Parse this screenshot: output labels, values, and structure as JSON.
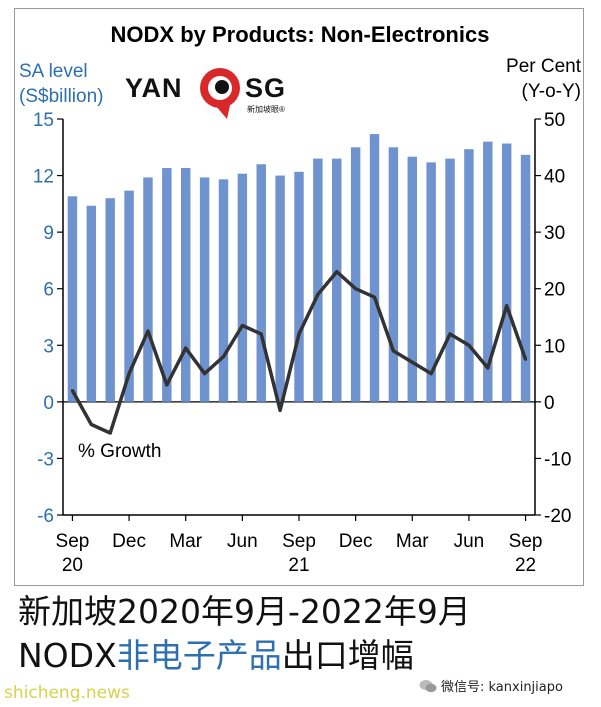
{
  "chart_data": {
    "type": "bar+line",
    "title": "NODX by Products: Non-Electronics",
    "left_axis": {
      "label_line1": "SA level",
      "label_line2": "(S$billion)",
      "ylim": [
        -6,
        15
      ],
      "ticks": [
        "15",
        "12",
        "9",
        "6",
        "3",
        "0",
        "-3",
        "-6"
      ],
      "color": "#6f93cf"
    },
    "right_axis": {
      "label_line1": "Per Cent",
      "label_line2": "(Y-o-Y)",
      "ylim": [
        -20,
        50
      ],
      "ticks": [
        "50",
        "40",
        "30",
        "20",
        "10",
        "0",
        "-10",
        "-20"
      ]
    },
    "x_ticks": [
      {
        "label": "Sep",
        "sub": "20",
        "index": 0
      },
      {
        "label": "Dec",
        "sub": "",
        "index": 3
      },
      {
        "label": "Mar",
        "sub": "",
        "index": 6
      },
      {
        "label": "Jun",
        "sub": "",
        "index": 9
      },
      {
        "label": "Sep",
        "sub": "21",
        "index": 12
      },
      {
        "label": "Dec",
        "sub": "",
        "index": 15
      },
      {
        "label": "Mar",
        "sub": "",
        "index": 18
      },
      {
        "label": "Jun",
        "sub": "",
        "index": 21
      },
      {
        "label": "Sep",
        "sub": "22",
        "index": 24
      }
    ],
    "months": [
      "Sep 20",
      "Oct 20",
      "Nov 20",
      "Dec 20",
      "Jan 21",
      "Feb 21",
      "Mar 21",
      "Apr 21",
      "May 21",
      "Jun 21",
      "Jul 21",
      "Aug 21",
      "Sep 21",
      "Oct 21",
      "Nov 21",
      "Dec 21",
      "Jan 22",
      "Feb 22",
      "Mar 22",
      "Apr 22",
      "May 22",
      "Jun 22",
      "Jul 22",
      "Aug 22",
      "Sep 22"
    ],
    "series": [
      {
        "type": "bar",
        "axis": "left",
        "values": [
          10.9,
          10.4,
          10.8,
          11.2,
          11.9,
          12.4,
          12.4,
          11.9,
          11.8,
          12.1,
          12.6,
          12.0,
          12.2,
          12.9,
          12.9,
          13.5,
          14.2,
          13.5,
          13.0,
          12.7,
          12.9,
          13.4,
          13.8,
          13.7,
          13.1
        ]
      },
      {
        "type": "line",
        "axis": "right",
        "color": "#333333",
        "values": [
          2,
          -4,
          -5.5,
          5,
          12.5,
          3,
          9.5,
          5,
          8,
          13.5,
          12,
          -1.5,
          12,
          19,
          23,
          20,
          18.5,
          9,
          7,
          5,
          12,
          10,
          6,
          17,
          7.5
        ]
      }
    ],
    "annotation": "% Growth"
  },
  "logo": {
    "left": "YAN",
    "right": "SG",
    "sub": "新加坡眼®"
  },
  "caption": {
    "line1": "新加坡2020年9月-2022年9月",
    "line2_prefix": "NODX",
    "line2_highlight": "非电子产品",
    "line2_suffix": "出口增幅"
  },
  "watermarks": {
    "left": "shicheng.news",
    "right": "微信号: kanxinjiapo"
  }
}
